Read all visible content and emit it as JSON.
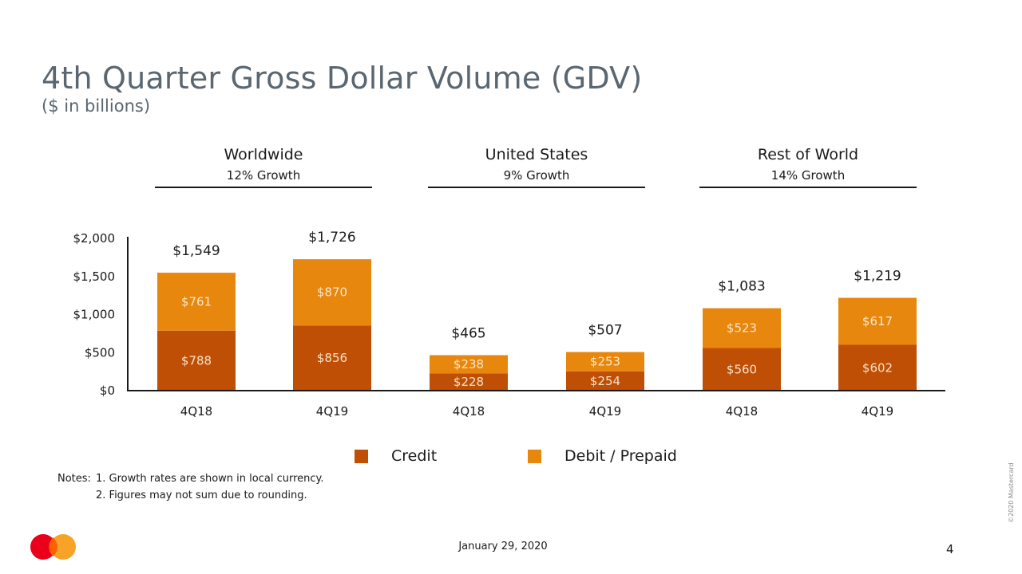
{
  "header": {
    "title": "4th Quarter Gross Dollar Volume (GDV)",
    "subtitle": "($ in billions)"
  },
  "groups": [
    {
      "name": "Worldwide",
      "growth": "12% Growth"
    },
    {
      "name": "United States",
      "growth": "9% Growth"
    },
    {
      "name": "Rest of World",
      "growth": "14% Growth"
    }
  ],
  "colors": {
    "credit": "#c04f06",
    "debit": "#e8870e",
    "axis": "#1a1a1a"
  },
  "chart_data": {
    "type": "bar",
    "stacked": true,
    "categories": [
      "4Q18",
      "4Q19",
      "4Q18",
      "4Q19",
      "4Q18",
      "4Q19"
    ],
    "series": [
      {
        "name": "Credit",
        "values": [
          788,
          856,
          228,
          254,
          560,
          602
        ],
        "labels": [
          "$788",
          "$856",
          "$228",
          "$254",
          "$560",
          "$602"
        ]
      },
      {
        "name": "Debit / Prepaid",
        "values": [
          761,
          870,
          238,
          253,
          523,
          617
        ],
        "labels": [
          "$761",
          "$870",
          "$238",
          "$253",
          "$523",
          "$617"
        ]
      }
    ],
    "totals": [
      1549,
      1726,
      465,
      507,
      1083,
      1219
    ],
    "total_labels": [
      "$1,549",
      "$1,726",
      "$465",
      "$507",
      "$1,083",
      "$1,219"
    ],
    "ylim": [
      0,
      2000
    ],
    "yticks": [
      0,
      500,
      1000,
      1500,
      2000
    ],
    "ytick_labels": [
      "$0",
      "$500",
      "$1,000",
      "$1,500",
      "$2,000"
    ],
    "grid": false
  },
  "legend": {
    "credit_label": "Credit",
    "debit_label": "Debit / Prepaid"
  },
  "notes": {
    "label": "Notes:",
    "items": [
      "1.  Growth rates are shown in local currency.",
      "2.  Figures may not sum due to rounding."
    ]
  },
  "footer": {
    "date": "January 29, 2020",
    "page": "4",
    "copyright": "©2020 Mastercard"
  }
}
